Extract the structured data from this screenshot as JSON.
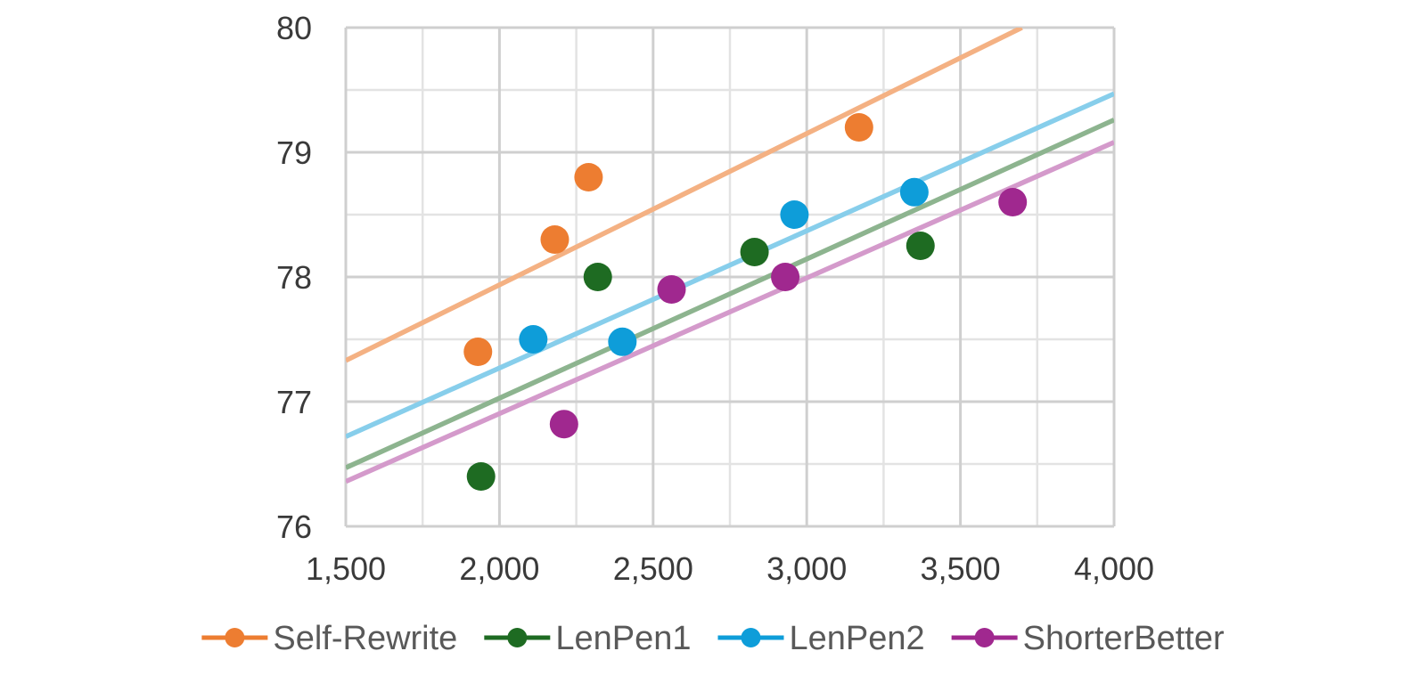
{
  "chart_data": {
    "type": "scatter",
    "title": "",
    "xlabel": "",
    "ylabel": "",
    "xlim": [
      1500,
      4000
    ],
    "ylim": [
      76,
      80
    ],
    "x_ticks": [
      1500,
      2000,
      2500,
      3000,
      3500,
      4000
    ],
    "x_tick_labels": [
      "1,500",
      "2,000",
      "2,500",
      "3,000",
      "3,500",
      "4,000"
    ],
    "y_ticks": [
      76,
      77,
      78,
      79,
      80
    ],
    "y_tick_labels": [
      "76",
      "77",
      "78",
      "79",
      "80"
    ],
    "grid": true,
    "minor_grid": true,
    "legend_position": "bottom",
    "series": [
      {
        "name": "Self-Rewrite",
        "color": "#ED7D31",
        "trend_color": "#F4B183",
        "points": [
          [
            1930,
            77.4
          ],
          [
            2180,
            78.3
          ],
          [
            2290,
            78.8
          ],
          [
            3170,
            79.2
          ]
        ],
        "trendline": [
          [
            1500,
            77.33
          ],
          [
            3700,
            80.0
          ]
        ]
      },
      {
        "name": "LenPen1",
        "color": "#1E6B22",
        "trend_color": "#8DB48F",
        "points": [
          [
            1940,
            76.4
          ],
          [
            2320,
            78.0
          ],
          [
            2830,
            78.2
          ],
          [
            3370,
            78.25
          ]
        ],
        "trendline": [
          [
            1500,
            76.47
          ],
          [
            4000,
            79.26
          ]
        ]
      },
      {
        "name": "LenPen2",
        "color": "#0E9DD9",
        "trend_color": "#87CEEB",
        "points": [
          [
            2110,
            77.5
          ],
          [
            2400,
            77.48
          ],
          [
            2960,
            78.5
          ],
          [
            3350,
            78.68
          ]
        ],
        "trendline": [
          [
            1500,
            76.72
          ],
          [
            4000,
            79.47
          ]
        ]
      },
      {
        "name": "ShorterBetter",
        "color": "#A0288F",
        "trend_color": "#D49ACB",
        "points": [
          [
            2210,
            76.82
          ],
          [
            2560,
            77.9
          ],
          [
            2930,
            78.0
          ],
          [
            3670,
            78.6
          ]
        ],
        "trendline": [
          [
            1500,
            76.36
          ],
          [
            4000,
            79.08
          ]
        ]
      }
    ]
  }
}
